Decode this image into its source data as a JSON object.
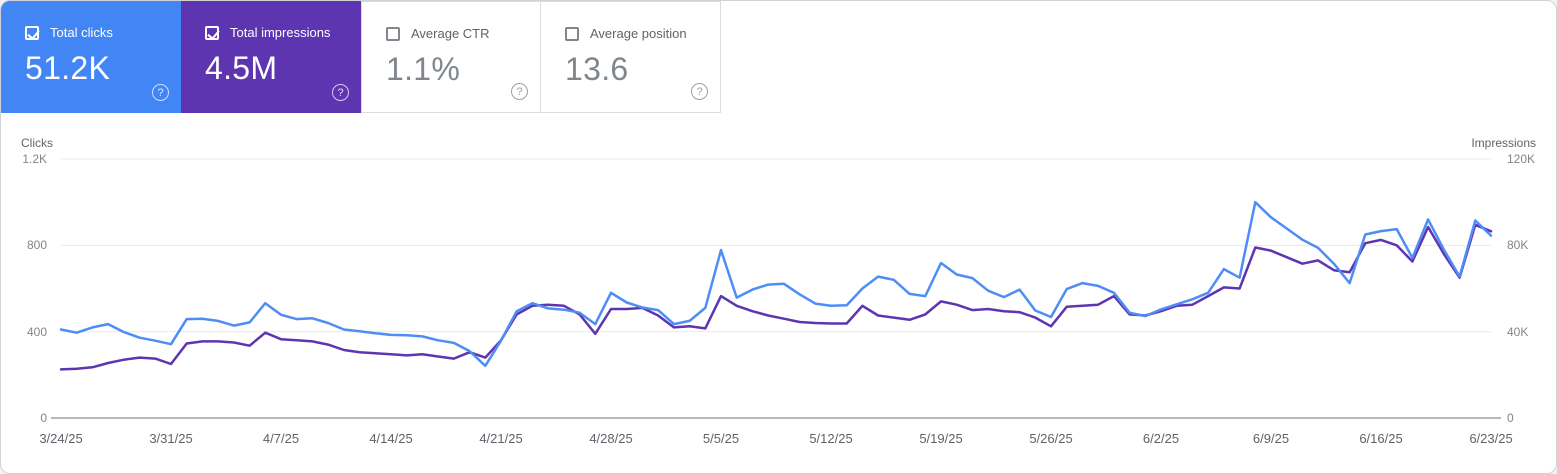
{
  "cards": [
    {
      "label": "Total clicks",
      "value": "51.2K",
      "selected": true,
      "color": "#4285f4"
    },
    {
      "label": "Total impressions",
      "value": "4.5M",
      "selected": true,
      "color": "#5e35b1"
    },
    {
      "label": "Average CTR",
      "value": "1.1%",
      "selected": false,
      "color": "#ffffff"
    },
    {
      "label": "Average position",
      "value": "13.6",
      "selected": false,
      "color": "#ffffff"
    }
  ],
  "help_icon": "question-mark-in-circle",
  "chart_data": {
    "type": "line",
    "granularity": "daily",
    "x_start": "3/24/25",
    "x_end": "6/23/25",
    "grid": true,
    "left_axis": {
      "title": "Clicks",
      "max": 1200,
      "tick_labels": [
        "1.2K",
        "800",
        "400",
        "0"
      ],
      "tick_values": [
        1200,
        800,
        400,
        0
      ]
    },
    "right_axis": {
      "title": "Impressions",
      "max": 120000,
      "tick_labels": [
        "120K",
        "80K",
        "40K",
        "0"
      ],
      "tick_values": [
        120000,
        80000,
        40000,
        0
      ]
    },
    "x_tick_labels": [
      "3/24/25",
      "3/31/25",
      "4/7/25",
      "4/14/25",
      "4/21/25",
      "4/28/25",
      "5/5/25",
      "5/12/25",
      "5/19/25",
      "5/26/25",
      "6/2/25",
      "6/9/25",
      "6/16/25",
      "6/23/25"
    ],
    "x_tick_days": [
      0,
      7,
      14,
      21,
      28,
      35,
      42,
      49,
      56,
      63,
      70,
      77,
      84,
      91
    ],
    "series": [
      {
        "name": "Total impressions",
        "axis": "right",
        "color": "#5e35b1",
        "values": [
          22500,
          22800,
          23500,
          25500,
          27000,
          28000,
          27500,
          25000,
          34500,
          35500,
          35500,
          35000,
          33500,
          39500,
          36500,
          36000,
          35500,
          34000,
          31500,
          30500,
          30000,
          29500,
          29000,
          29500,
          28500,
          27500,
          30500,
          28000,
          36000,
          48000,
          52000,
          52500,
          52000,
          48000,
          39000,
          50500,
          50500,
          51000,
          47500,
          42000,
          42500,
          41500,
          56500,
          52000,
          49500,
          47500,
          46000,
          44500,
          44000,
          43800,
          43800,
          52000,
          47500,
          46500,
          45500,
          48000,
          54000,
          52500,
          50000,
          50500,
          49500,
          49000,
          46500,
          42500,
          51500,
          52000,
          52500,
          56500,
          48000,
          47500,
          49500,
          52000,
          52500,
          56500,
          60500,
          60000,
          79000,
          77500,
          74500,
          71500,
          73000,
          68500,
          67500,
          81000,
          82500,
          80000,
          72500,
          88500,
          76000,
          65000,
          89500,
          86500
        ]
      },
      {
        "name": "Total clicks",
        "axis": "left",
        "color": "#4e8df6",
        "values": [
          410,
          395,
          420,
          435,
          398,
          372,
          358,
          342,
          458,
          460,
          450,
          428,
          443,
          532,
          478,
          458,
          462,
          440,
          410,
          402,
          393,
          385,
          383,
          378,
          360,
          348,
          310,
          242,
          358,
          495,
          532,
          508,
          502,
          488,
          435,
          580,
          535,
          512,
          500,
          435,
          450,
          510,
          778,
          558,
          595,
          618,
          622,
          573,
          530,
          520,
          522,
          600,
          655,
          640,
          575,
          565,
          718,
          665,
          648,
          590,
          560,
          595,
          498,
          468,
          597,
          625,
          612,
          580,
          488,
          472,
          503,
          527,
          550,
          580,
          690,
          650,
          1000,
          930,
          878,
          826,
          788,
          715,
          625,
          850,
          866,
          875,
          742,
          920,
          780,
          655,
          915,
          845
        ]
      }
    ],
    "plot_colors": {
      "gridline": "#e9eaec",
      "zero_line": "#b6babf"
    }
  }
}
